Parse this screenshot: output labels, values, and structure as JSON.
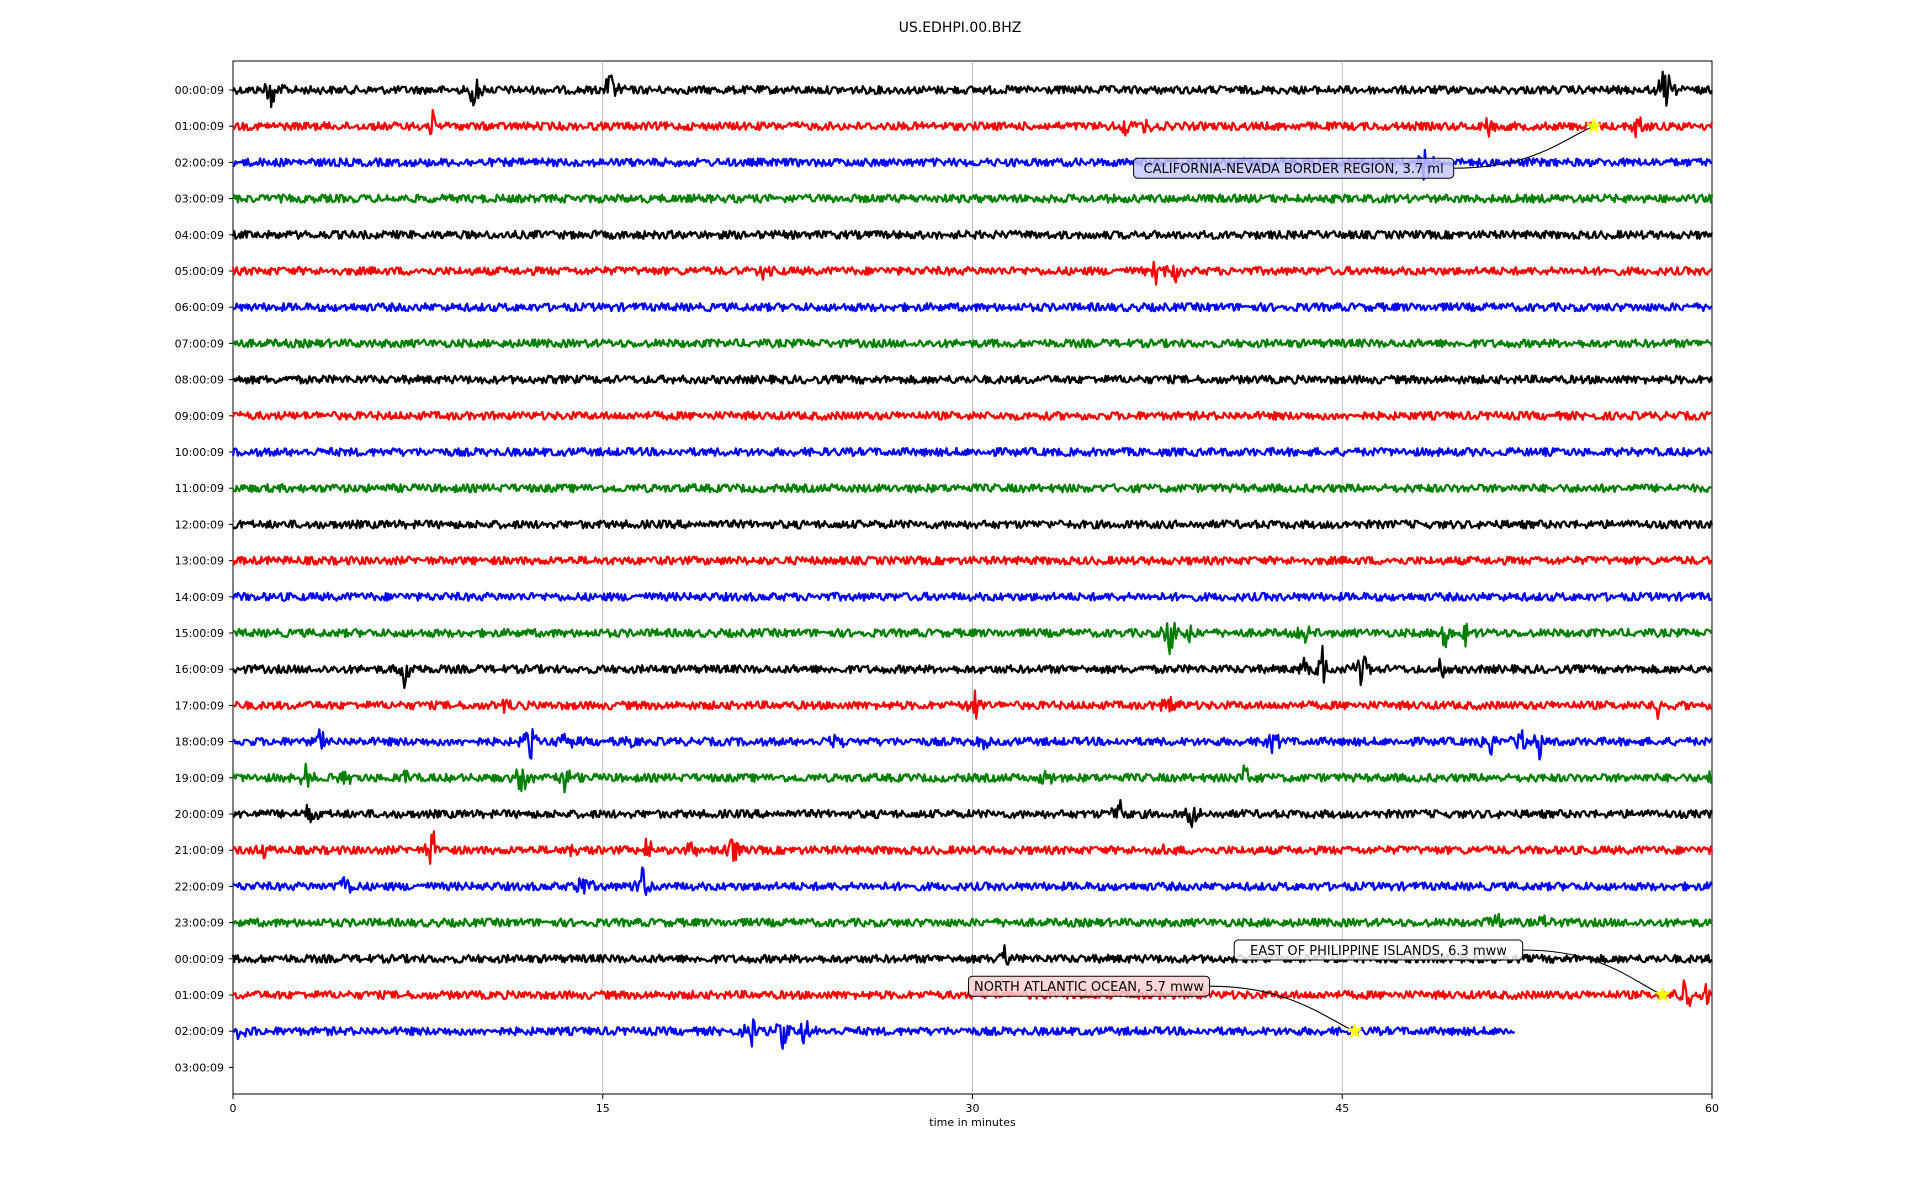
{
  "chart_data": {
    "type": "line",
    "title": "US.EDHPI.00.BHZ",
    "xlabel": "time in minutes",
    "ylabel": "",
    "xlim": [
      0,
      60
    ],
    "x_ticks": [
      0,
      15,
      30,
      45,
      60
    ],
    "x_tick_labels": [
      "0",
      "15",
      "30",
      "45",
      "60"
    ],
    "grid": "vertical at x ticks",
    "row_labels": [
      "00:00:09",
      "01:00:09",
      "02:00:09",
      "03:00:09",
      "04:00:09",
      "05:00:09",
      "06:00:09",
      "07:00:09",
      "08:00:09",
      "09:00:09",
      "10:00:09",
      "11:00:09",
      "12:00:09",
      "13:00:09",
      "14:00:09",
      "15:00:09",
      "16:00:09",
      "17:00:09",
      "18:00:09",
      "19:00:09",
      "20:00:09",
      "21:00:09",
      "22:00:09",
      "23:00:09",
      "00:00:09",
      "01:00:09",
      "02:00:09",
      "03:00:09"
    ],
    "trace_colors": [
      "#000000",
      "#ff0000",
      "#0000ff",
      "#008000"
    ],
    "trace_end_minutes": [
      60,
      60,
      60,
      60,
      60,
      60,
      60,
      60,
      60,
      60,
      60,
      60,
      60,
      60,
      60,
      60,
      60,
      60,
      60,
      60,
      60,
      60,
      60,
      60,
      60,
      60,
      52,
      null
    ],
    "bursts": [
      {
        "row": 0,
        "t": 1.6,
        "amp": 1.0
      },
      {
        "row": 0,
        "t": 9.8,
        "amp": 0.8
      },
      {
        "row": 0,
        "t": 15.3,
        "amp": 0.8
      },
      {
        "row": 0,
        "t": 58.1,
        "amp": 1.0
      },
      {
        "row": 1,
        "t": 8.1,
        "amp": 0.5
      },
      {
        "row": 1,
        "t": 36.2,
        "amp": 0.5
      },
      {
        "row": 1,
        "t": 37.0,
        "amp": 0.4
      },
      {
        "row": 1,
        "t": 50.9,
        "amp": 0.5
      },
      {
        "row": 1,
        "t": 57.0,
        "amp": 0.6
      },
      {
        "row": 2,
        "t": 48.4,
        "amp": 0.9
      },
      {
        "row": 5,
        "t": 21.5,
        "amp": 0.3
      },
      {
        "row": 5,
        "t": 37.5,
        "amp": 0.8
      },
      {
        "row": 5,
        "t": 38.2,
        "amp": 0.6
      },
      {
        "row": 15,
        "t": 38.0,
        "amp": 1.0
      },
      {
        "row": 15,
        "t": 38.8,
        "amp": 0.5
      },
      {
        "row": 15,
        "t": 43.5,
        "amp": 0.5
      },
      {
        "row": 15,
        "t": 44.5,
        "amp": 0.4
      },
      {
        "row": 15,
        "t": 49.2,
        "amp": 0.6
      },
      {
        "row": 15,
        "t": 50.0,
        "amp": 0.4
      },
      {
        "row": 16,
        "t": 7.0,
        "amp": 0.8
      },
      {
        "row": 16,
        "t": 43.5,
        "amp": 0.5
      },
      {
        "row": 16,
        "t": 44.2,
        "amp": 0.8
      },
      {
        "row": 16,
        "t": 45.8,
        "amp": 0.7
      },
      {
        "row": 16,
        "t": 49.0,
        "amp": 0.4
      },
      {
        "row": 17,
        "t": 11.0,
        "amp": 0.3
      },
      {
        "row": 17,
        "t": 30.1,
        "amp": 0.6
      },
      {
        "row": 17,
        "t": 38.0,
        "amp": 0.6
      },
      {
        "row": 17,
        "t": 57.8,
        "amp": 0.4
      },
      {
        "row": 18,
        "t": 3.5,
        "amp": 0.5
      },
      {
        "row": 18,
        "t": 12.0,
        "amp": 0.9
      },
      {
        "row": 18,
        "t": 13.5,
        "amp": 0.5
      },
      {
        "row": 18,
        "t": 16.0,
        "amp": 0.4
      },
      {
        "row": 18,
        "t": 24.5,
        "amp": 0.3
      },
      {
        "row": 18,
        "t": 30.5,
        "amp": 0.4
      },
      {
        "row": 18,
        "t": 42.2,
        "amp": 0.5
      },
      {
        "row": 18,
        "t": 51.0,
        "amp": 0.6
      },
      {
        "row": 18,
        "t": 52.3,
        "amp": 0.6
      },
      {
        "row": 18,
        "t": 53.0,
        "amp": 0.5
      },
      {
        "row": 19,
        "t": 3.0,
        "amp": 0.5
      },
      {
        "row": 19,
        "t": 4.5,
        "amp": 0.4
      },
      {
        "row": 19,
        "t": 7.0,
        "amp": 0.4
      },
      {
        "row": 19,
        "t": 11.8,
        "amp": 1.0
      },
      {
        "row": 19,
        "t": 13.5,
        "amp": 0.6
      },
      {
        "row": 19,
        "t": 33.0,
        "amp": 0.5
      },
      {
        "row": 19,
        "t": 41.0,
        "amp": 0.5
      },
      {
        "row": 19,
        "t": 59.9,
        "amp": 0.4
      },
      {
        "row": 20,
        "t": 3.1,
        "amp": 0.4
      },
      {
        "row": 20,
        "t": 35.9,
        "amp": 0.7
      },
      {
        "row": 20,
        "t": 38.9,
        "amp": 0.6
      },
      {
        "row": 21,
        "t": 1.3,
        "amp": 0.3
      },
      {
        "row": 21,
        "t": 8.1,
        "amp": 0.9
      },
      {
        "row": 21,
        "t": 13.8,
        "amp": 0.3
      },
      {
        "row": 21,
        "t": 16.8,
        "amp": 0.5
      },
      {
        "row": 21,
        "t": 18.6,
        "amp": 0.5
      },
      {
        "row": 21,
        "t": 20.3,
        "amp": 0.5
      },
      {
        "row": 21,
        "t": 37.9,
        "amp": 0.3
      },
      {
        "row": 22,
        "t": 4.5,
        "amp": 0.6
      },
      {
        "row": 22,
        "t": 14.2,
        "amp": 0.6
      },
      {
        "row": 22,
        "t": 16.6,
        "amp": 0.7
      },
      {
        "row": 23,
        "t": 51.2,
        "amp": 0.4
      },
      {
        "row": 23,
        "t": 53.2,
        "amp": 0.3
      },
      {
        "row": 24,
        "t": 31.3,
        "amp": 0.5
      },
      {
        "row": 25,
        "t": 58.9,
        "amp": 1.0
      },
      {
        "row": 25,
        "t": 59.8,
        "amp": 0.4
      },
      {
        "row": 26,
        "t": 0.3,
        "amp": 0.3
      },
      {
        "row": 26,
        "t": 21.0,
        "amp": 0.6
      },
      {
        "row": 26,
        "t": 22.3,
        "amp": 0.6
      },
      {
        "row": 26,
        "t": 23.2,
        "amp": 0.6
      }
    ],
    "events": [
      {
        "label": "CALIFORNIA-NEVADA BORDER REGION, 3.7 ml",
        "row": 1,
        "t": 55.2,
        "box_color": "#c8c8ff"
      },
      {
        "label": "EAST OF PHILIPPINE ISLANDS, 6.3 mww",
        "row": 25,
        "t": 58.0,
        "box_color": "#ffffff"
      },
      {
        "label": "NORTH ATLANTIC OCEAN, 5.7 mww",
        "row": 26,
        "t": 45.5,
        "box_color": "#ffd0d0"
      }
    ],
    "marker_color": "#ffff00"
  }
}
